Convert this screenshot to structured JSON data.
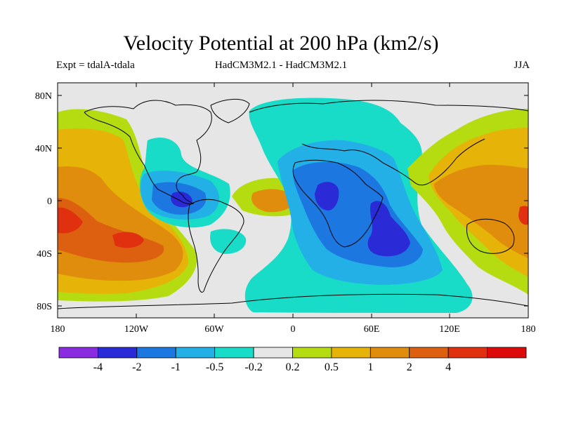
{
  "title": "Velocity Potential at 200 hPa (km2/s)",
  "subtitle_left": "Expt = tdalA-tdala",
  "subtitle_center": "HadCM3M2.1 - HadCM3M2.1",
  "subtitle_right": "JJA",
  "y_axis": [
    "80N",
    "40N",
    "0",
    "40S",
    "80S"
  ],
  "x_axis": [
    "180",
    "120W",
    "60W",
    "0",
    "60E",
    "120E",
    "180"
  ],
  "colorbar": {
    "colors": [
      "#8a2be2",
      "#2a2ad6",
      "#1c78e0",
      "#22b0e6",
      "#18dcc8",
      "#e6e6e6",
      "#b4dc10",
      "#e6b408",
      "#e08c0c",
      "#dc6010",
      "#e03010",
      "#dc0a0a"
    ],
    "labels": [
      "-4",
      "-2",
      "-1",
      "-0.5",
      "-0.2",
      "0.2",
      "0.5",
      "1",
      "2",
      "4"
    ]
  }
}
